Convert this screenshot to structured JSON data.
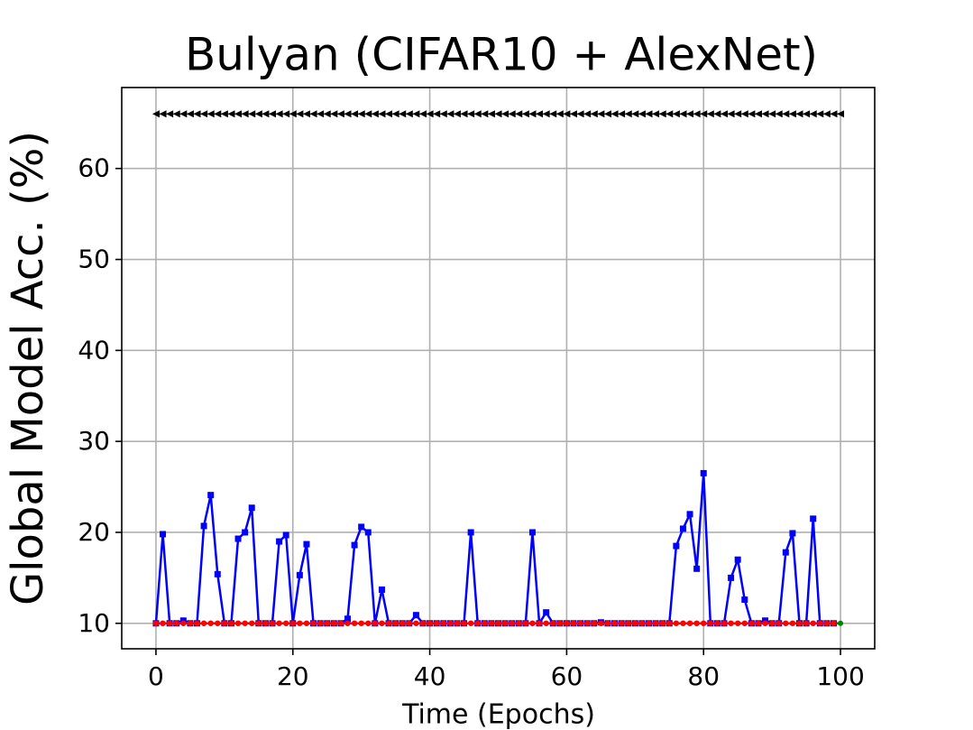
{
  "chart_data": {
    "type": "line",
    "title": "Bulyan (CIFAR10 + AlexNet)",
    "x_label": "Time (Epochs)",
    "y_label": "Global Model Acc. (%)",
    "xlim": [
      -5,
      105
    ],
    "xticks": [
      0,
      20,
      40,
      60,
      80,
      100
    ],
    "ylim": [
      7.2,
      68.9
    ],
    "yticks": [
      10,
      20,
      30,
      40,
      50,
      60
    ],
    "grid": true,
    "x": [
      0,
      1,
      2,
      3,
      4,
      5,
      6,
      7,
      8,
      9,
      10,
      11,
      12,
      13,
      14,
      15,
      16,
      17,
      18,
      19,
      20,
      21,
      22,
      23,
      24,
      25,
      26,
      27,
      28,
      29,
      30,
      31,
      32,
      33,
      34,
      35,
      36,
      37,
      38,
      39,
      40,
      41,
      42,
      43,
      44,
      45,
      46,
      47,
      48,
      49,
      50,
      51,
      52,
      53,
      54,
      55,
      56,
      57,
      58,
      59,
      60,
      61,
      62,
      63,
      64,
      65,
      66,
      67,
      68,
      69,
      70,
      71,
      72,
      73,
      74,
      75,
      76,
      77,
      78,
      79,
      80,
      81,
      82,
      83,
      84,
      85,
      86,
      87,
      88,
      89,
      90,
      91,
      92,
      93,
      94,
      95,
      96,
      97,
      98,
      99,
      100
    ],
    "series": [
      {
        "color": "#000000",
        "marker": "<",
        "line_width": 1,
        "marker_size": 4,
        "values": [
          66,
          66,
          66,
          66,
          66,
          66,
          66,
          66,
          66,
          66,
          66,
          66,
          66,
          66,
          66,
          66,
          66,
          66,
          66,
          66,
          66,
          66,
          66,
          66,
          66,
          66,
          66,
          66,
          66,
          66,
          66,
          66,
          66,
          66,
          66,
          66,
          66,
          66,
          66,
          66,
          66,
          66,
          66,
          66,
          66,
          66,
          66,
          66,
          66,
          66,
          66,
          66,
          66,
          66,
          66,
          66,
          66,
          66,
          66,
          66,
          66,
          66,
          66,
          66,
          66,
          66,
          66,
          66,
          66,
          66,
          66,
          66,
          66,
          66,
          66,
          66,
          66,
          66,
          66,
          66,
          66,
          66,
          66,
          66,
          66,
          66,
          66,
          66,
          66,
          66,
          66,
          66,
          66,
          66,
          66,
          66,
          66,
          66,
          66,
          66,
          66
        ]
      },
      {
        "color": "#008000",
        "marker": "o",
        "line_width": 2.5,
        "marker_size": 3,
        "values": [
          10,
          10,
          10,
          10,
          10,
          10,
          10,
          10,
          10,
          10,
          10,
          10,
          10,
          10,
          10,
          10,
          10,
          10,
          10,
          10,
          10,
          10,
          10,
          10,
          10,
          10,
          10,
          10,
          10,
          10,
          10,
          10,
          10,
          10,
          10,
          10,
          10,
          10,
          10,
          10,
          10,
          10,
          10,
          10,
          10,
          10,
          10,
          10,
          10,
          10,
          10,
          10,
          10,
          10,
          10,
          10,
          10,
          10,
          10,
          10,
          10,
          10,
          10,
          10,
          10,
          10,
          10,
          10,
          10,
          10,
          10,
          10,
          10,
          10,
          10,
          10,
          10,
          10,
          10,
          10,
          10,
          10,
          10,
          10,
          10,
          10,
          10,
          10,
          10,
          10,
          10,
          10,
          10,
          10,
          10,
          10,
          10,
          10,
          10,
          10,
          10
        ]
      },
      {
        "color": "#0000ff",
        "marker": "s",
        "line_width": 2.5,
        "marker_size": 3.5,
        "values": [
          10,
          19.8,
          10,
          10,
          10.3,
          10,
          10,
          20.7,
          24.1,
          15.4,
          10,
          10,
          19.3,
          20,
          22.7,
          10,
          10,
          10,
          19,
          19.7,
          10,
          15.3,
          18.7,
          10,
          10,
          10,
          10,
          10,
          10.5,
          18.6,
          20.6,
          20,
          10,
          13.7,
          10,
          10,
          10,
          10,
          10.9,
          10,
          10,
          10,
          10,
          10,
          10,
          10,
          20,
          10,
          10,
          10,
          10,
          10,
          10,
          10,
          10,
          20,
          10,
          11.2,
          10,
          10,
          10,
          10,
          10,
          10,
          10,
          10.1,
          10,
          10,
          10,
          10,
          10,
          10,
          10,
          10,
          10,
          10,
          18.5,
          20.4,
          22,
          16,
          26.5,
          10,
          10,
          10,
          15,
          17,
          12.6,
          10,
          10,
          10.3,
          10,
          10,
          17.8,
          19.9,
          10,
          10,
          21.5,
          10,
          10,
          10,
          null
        ]
      },
      {
        "color": "#ff0000",
        "marker": "o",
        "line_width": 2.5,
        "marker_size": 3.2,
        "values": [
          10,
          10,
          10,
          10,
          10,
          10,
          10,
          10,
          10,
          10,
          10,
          10,
          10,
          10,
          10,
          10,
          10,
          10,
          10,
          10,
          10,
          10,
          10,
          10,
          10,
          10,
          10,
          10,
          10,
          10,
          10,
          10,
          10,
          10,
          10,
          10,
          10,
          10,
          10,
          10,
          10,
          10,
          10,
          10,
          10,
          10,
          10,
          10,
          10,
          10,
          10,
          10,
          10,
          10,
          10,
          10,
          10,
          10,
          10,
          10,
          10,
          10,
          10,
          10,
          10,
          10,
          10,
          10,
          10,
          10,
          10,
          10,
          10,
          10,
          10,
          10,
          10,
          10,
          10,
          10,
          10,
          10,
          10,
          10,
          10,
          10,
          10,
          10,
          10,
          10,
          10,
          10,
          10,
          10,
          10,
          10,
          10,
          10,
          10,
          10,
          null
        ]
      }
    ]
  }
}
